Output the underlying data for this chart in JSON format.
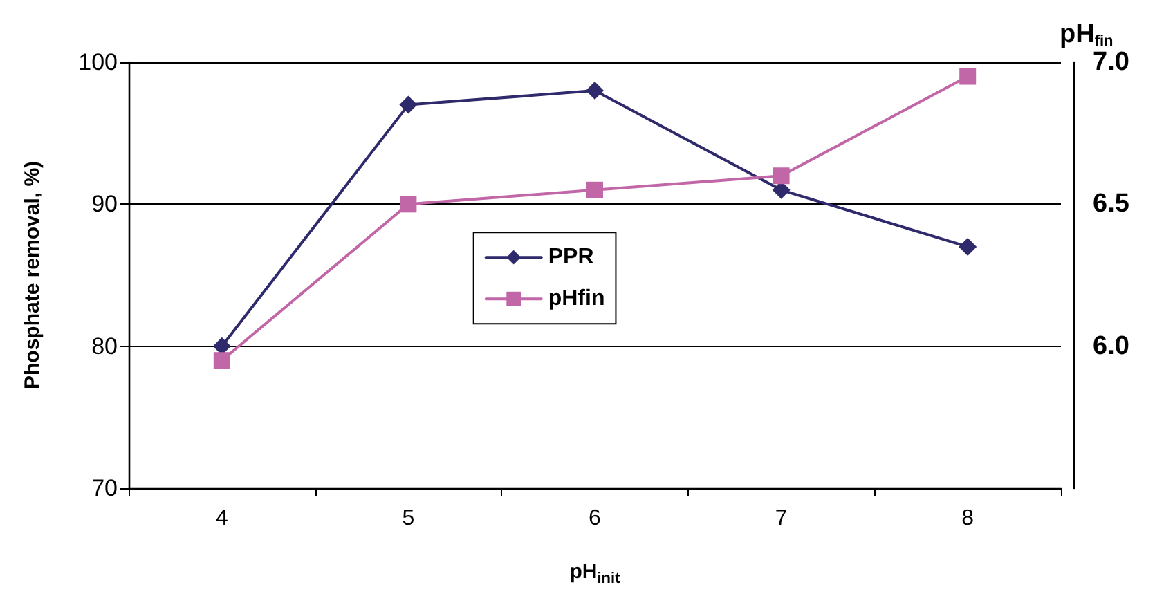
{
  "chart_data": {
    "type": "line",
    "xlabel": "pH$_{init}$",
    "ylabel": "Phosphate removal, %)",
    "y2label": "pH$_{fin}$",
    "categories": [
      "4",
      "5",
      "6",
      "7",
      "8"
    ],
    "series": [
      {
        "name": "PPR",
        "color": "#2e2a6b",
        "marker": "diamond",
        "values": [
          80,
          97,
          98,
          91,
          87
        ]
      },
      {
        "name": "pHfin",
        "color": "#c166a6",
        "marker": "square",
        "axis": "y2",
        "values": [
          5.95,
          6.5,
          6.55,
          6.6,
          6.95
        ]
      }
    ],
    "ylim": [
      70,
      100
    ],
    "yticks": [
      70,
      80,
      90,
      100
    ],
    "y2lim": [
      5.5,
      7.0
    ],
    "y2ticks": [
      {
        "value": 6,
        "label": "6.0"
      },
      6.5,
      {
        "value": 7,
        "label": "7.0"
      }
    ],
    "grid": "y",
    "legend": "center",
    "line_style": "solid"
  }
}
